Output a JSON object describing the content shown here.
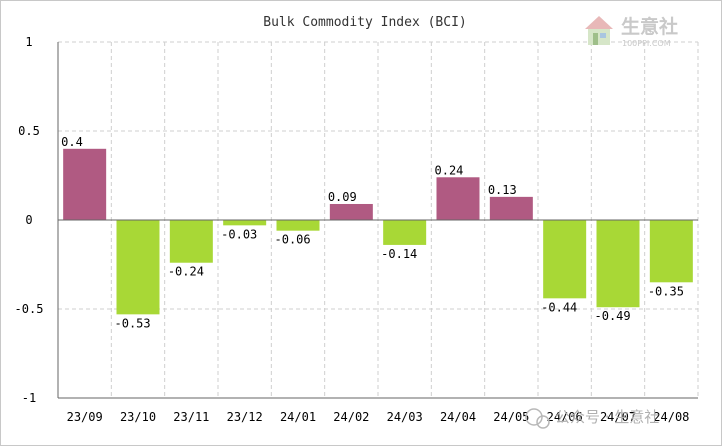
{
  "chart_data": {
    "type": "bar",
    "title": "Bulk Commodity Index (BCI)",
    "categories": [
      "23/09",
      "23/10",
      "23/11",
      "23/12",
      "24/01",
      "24/02",
      "24/03",
      "24/04",
      "24/05",
      "24/06",
      "24/07",
      "24/08"
    ],
    "values": [
      0.4,
      -0.53,
      -0.24,
      -0.03,
      -0.06,
      0.09,
      -0.14,
      0.24,
      0.13,
      -0.44,
      -0.49,
      -0.35
    ],
    "data_labels": [
      "0.4",
      "-0.53",
      "-0.24",
      "-0.03",
      "-0.06",
      "0.09",
      "-0.14",
      "0.24",
      "0.13",
      "-0.44",
      "-0.49",
      "-0.35"
    ],
    "ylim": [
      -1,
      1
    ],
    "yticks": [
      "1",
      "0.5",
      "0",
      "-0.5",
      "-1"
    ],
    "ytick_values": [
      1,
      0.5,
      0,
      -0.5,
      -1
    ],
    "grid": true,
    "xlabel": "",
    "ylabel": "",
    "colors": {
      "positive": "#b05a82",
      "negative": "#a8d836",
      "grid": "#cfcfcf",
      "axis": "#666666"
    }
  },
  "branding": {
    "logo_name": "生意社",
    "logo_url": "100PPI.COM",
    "logo_icon": "house-icon",
    "watermark": "公众号 · 生意社",
    "watermark_icon": "wechat-icon"
  }
}
